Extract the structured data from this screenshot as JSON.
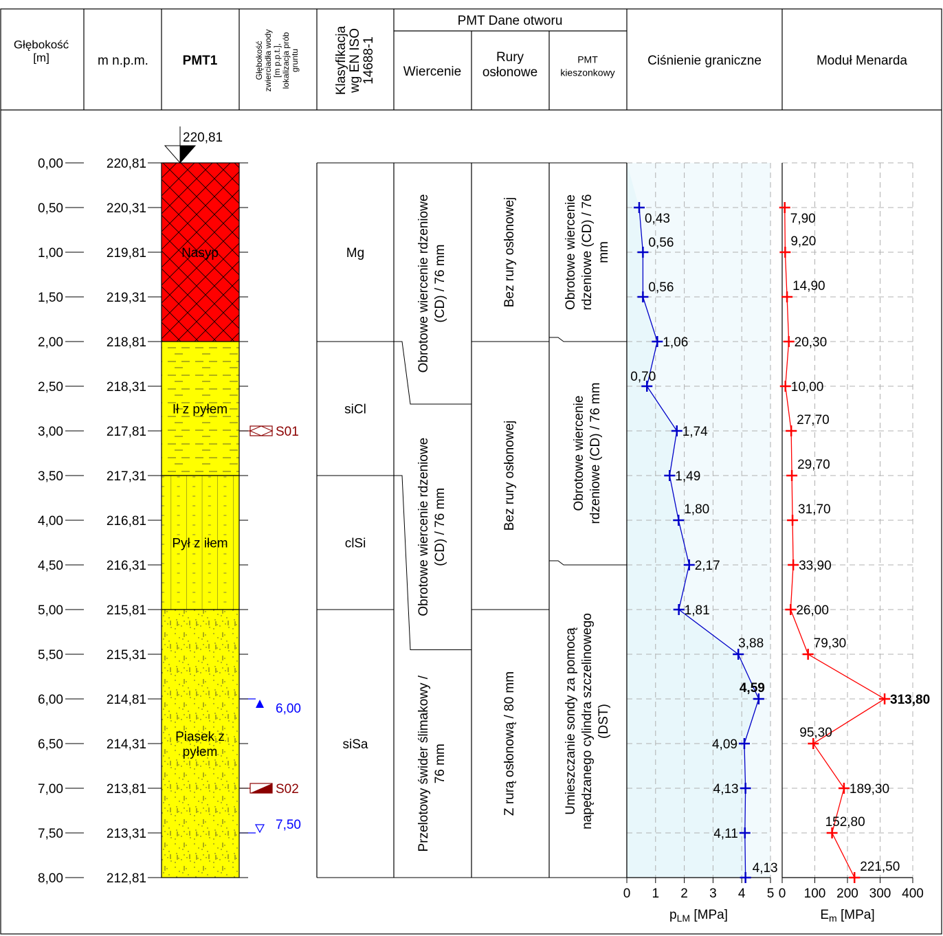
{
  "header": {
    "depth": "Głębokość\n[m]",
    "elevation": "m n.p.m.",
    "borehole": "PMT1",
    "water": "Głębokość\nzwierciadła wody\n[m p.p.t.],\nlokalizacja prób\ngruntu",
    "classification": "Klasyfikacja\nwg EN ISO\n14688-1",
    "pmt_group": "PMT Dane otworu",
    "drilling": "Wiercenie",
    "casing": "Rury\nosłonowe",
    "pocket": "PMT\nkieszonkowy",
    "plm_title": "Ciśnienie graniczne",
    "em_title": "Moduł Menarda"
  },
  "ground_elevation": "220,81",
  "depth_labels": [
    "0,00",
    "0,50",
    "1,00",
    "1,50",
    "2,00",
    "2,50",
    "3,00",
    "3,50",
    "4,00",
    "4,50",
    "5,00",
    "5,50",
    "6,00",
    "6,50",
    "7,00",
    "7,50",
    "8,00"
  ],
  "elevation_labels": [
    "220,81",
    "220,31",
    "219,81",
    "219,31",
    "218,81",
    "218,31",
    "217,81",
    "217,31",
    "216,81",
    "216,31",
    "215,81",
    "215,31",
    "214,81",
    "214,31",
    "213,81",
    "213,31",
    "212,81"
  ],
  "layers": [
    {
      "top": 0.0,
      "bottom": 2.0,
      "name": "Nasyp",
      "color": "#ff0000",
      "pattern": "fill",
      "class": "Mg"
    },
    {
      "top": 2.0,
      "bottom": 3.5,
      "name": "Ił z pyłem",
      "color": "#ffff00",
      "pattern": "clay",
      "class": "siCl"
    },
    {
      "top": 3.5,
      "bottom": 5.0,
      "name": "Pył z iłem",
      "color": "#ffff00",
      "pattern": "silt",
      "class": "clSi"
    },
    {
      "top": 5.0,
      "bottom": 8.0,
      "name": "Piasek z\npyłem",
      "color": "#ffff00",
      "pattern": "sand",
      "class": "siSa"
    }
  ],
  "samples": [
    {
      "depth": 3.0,
      "label": "S01",
      "type": "disturbed"
    },
    {
      "depth": 7.0,
      "label": "S02",
      "type": "undisturbed"
    }
  ],
  "water_levels": [
    {
      "depth": 6.0,
      "label": "6,00",
      "type": "encountered"
    },
    {
      "depth": 7.5,
      "label": "7,50",
      "type": "stabilized"
    }
  ],
  "drilling": [
    {
      "top": 0.0,
      "bottom": 2.7,
      "text": "Obrotowe wiercenie rdzeniowe\n(CD) / 76 mm"
    },
    {
      "top": 2.7,
      "bottom": 5.45,
      "text": "Obrotowe wiercenie rdzeniowe\n(CD) / 76 mm"
    },
    {
      "top": 5.45,
      "bottom": 8.0,
      "text": "Przelotowy świder ślimakowy /\n76 mm"
    }
  ],
  "casing": [
    {
      "top": 0.0,
      "bottom": 2.0,
      "text": "Bez rury osłonowej"
    },
    {
      "top": 2.0,
      "bottom": 5.0,
      "text": "Bez rury osłonowej"
    },
    {
      "top": 5.0,
      "bottom": 8.0,
      "text": "Z rurą osłonową / 80 mm"
    }
  ],
  "pmt_method": [
    {
      "top": 0.0,
      "bottom": 2.0,
      "text": "Obrotowe wiercenie\nrdzeniowe (CD) / 76\nmm"
    },
    {
      "top": 2.0,
      "bottom": 4.5,
      "text": "Obrotowe wiercenie\nrdzeniowe (CD) / 76 mm"
    },
    {
      "top": 4.5,
      "bottom": 8.0,
      "text": "Umieszczanie sondy za pomocą\nnapędzanego cylindra szczelinowego\n(DST)"
    }
  ],
  "chart_data": [
    {
      "type": "line",
      "title": "Ciśnienie graniczne",
      "xlabel": "pLM [MPa]",
      "ylabel": "Głębokość [m]",
      "xlim": [
        0,
        5
      ],
      "ylim": [
        8,
        0
      ],
      "xticks": [
        "0",
        "1",
        "2",
        "3",
        "4",
        "5"
      ],
      "grid": true,
      "color": "#0000c8",
      "x": [
        0.43,
        0.56,
        0.56,
        1.06,
        0.7,
        1.74,
        1.49,
        1.8,
        2.17,
        1.81,
        3.88,
        4.59,
        4.09,
        4.13,
        4.11,
        4.13
      ],
      "y": [
        0.5,
        1.0,
        1.5,
        2.0,
        2.5,
        3.0,
        3.5,
        4.0,
        4.5,
        5.0,
        5.5,
        6.0,
        6.5,
        7.0,
        7.5,
        8.0
      ],
      "labels": [
        "0,43",
        "0,56",
        "0,56",
        "1,06",
        "0,70",
        "1,74",
        "1,49",
        "1,80",
        "2,17",
        "1,81",
        "3,88",
        "4,59",
        "4,09",
        "4,13",
        "4,11",
        "4,13"
      ],
      "highlight": 11
    },
    {
      "type": "line",
      "title": "Moduł Menarda",
      "xlabel": "Em [MPa]",
      "ylabel": "Głębokość [m]",
      "xlim": [
        0,
        400
      ],
      "ylim": [
        8,
        0
      ],
      "xticks": [
        "0",
        "100",
        "200",
        "300",
        "400"
      ],
      "grid": true,
      "color": "#ff0000",
      "x": [
        7.9,
        9.2,
        14.9,
        20.3,
        10.0,
        27.7,
        29.7,
        31.7,
        33.9,
        26.0,
        79.3,
        313.8,
        95.3,
        189.3,
        152.8,
        221.5
      ],
      "y": [
        0.5,
        1.0,
        1.5,
        2.0,
        2.5,
        3.0,
        3.5,
        4.0,
        4.5,
        5.0,
        5.5,
        6.0,
        6.5,
        7.0,
        7.5,
        8.0
      ],
      "labels": [
        "7,90",
        "9,20",
        "14,90",
        "20,30",
        "10,00",
        "27,70",
        "29,70",
        "31,70",
        "33,90",
        "26,00",
        "79,30",
        "313,80",
        "95,30",
        "189,30",
        "152,80",
        "221,50"
      ],
      "highlight": 11
    }
  ]
}
